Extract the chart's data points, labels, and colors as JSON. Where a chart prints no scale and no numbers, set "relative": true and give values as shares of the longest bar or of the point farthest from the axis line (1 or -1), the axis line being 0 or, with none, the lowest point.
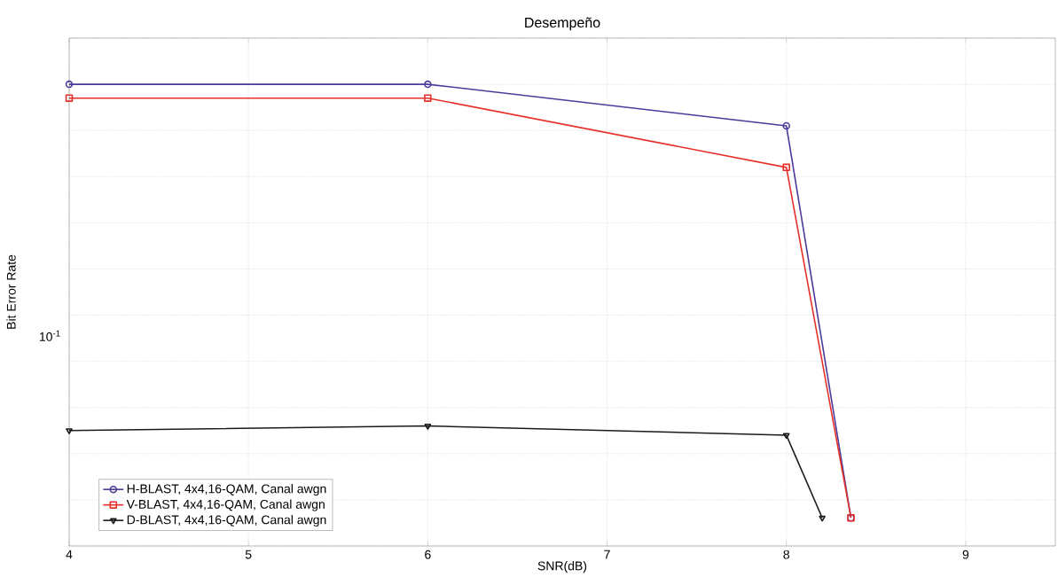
{
  "chart_data": {
    "type": "line",
    "title": "Desempeño",
    "xlabel": "SNR(dB)",
    "ylabel": "Bit Error Rate",
    "relative": true,
    "series": [
      {
        "name": "H-BLAST, 4x4,16-QAM, Canal awgn",
        "color": "#4b3a9a",
        "marker": "circle",
        "x": [
          4,
          6,
          8,
          8.36
        ],
        "values": [
          1,
          1,
          0.91,
          0.061
        ]
      },
      {
        "name": "V-BLAST, 4x4,16-QAM, Canal awgn",
        "color": "#e8302a",
        "marker": "square",
        "x": [
          4,
          6,
          8,
          8.36
        ],
        "values": [
          0.97,
          0.97,
          0.82,
          0.061
        ]
      },
      {
        "name": "D-BLAST, 4x4,16-QAM, Canal awgn",
        "color": "#1a1a1a",
        "marker": "triangle",
        "x": [
          4,
          6,
          8,
          8.2
        ],
        "values": [
          0.25,
          0.26,
          0.24,
          0.061
        ]
      }
    ],
    "annotations": [
      "10$^{-1}$"
    ],
    "xlim": [
      4,
      9.5
    ],
    "xticks": [
      4,
      5,
      6,
      7,
      8,
      9
    ],
    "grid": true,
    "legend": "bottom left",
    "line_style": "solid"
  }
}
